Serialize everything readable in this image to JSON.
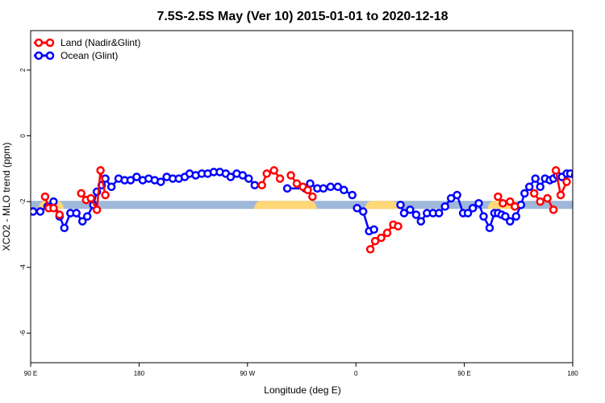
{
  "chart_data": {
    "type": "line",
    "title": "7.5S-2.5S May (Ver 10)   2015-01-01 to 2020-12-18",
    "xlabel": "Longitude (deg E)",
    "ylabel": "XCO2 - MLO trend (ppm)",
    "x_ticks": [
      {
        "value": 90,
        "label": "90 E"
      },
      {
        "value": 180,
        "label": "180"
      },
      {
        "value": 270,
        "label": "90 W"
      },
      {
        "value": 360,
        "label": "0"
      },
      {
        "value": 450,
        "label": "90 E"
      },
      {
        "value": 540,
        "label": "180"
      }
    ],
    "y_ticks": [
      2,
      0,
      -2,
      -4,
      -6
    ],
    "xlim": [
      90,
      540
    ],
    "ylim": [
      -6.9,
      3.2
    ],
    "grid": false,
    "legend_position": "top-left",
    "band": {
      "y": -2.1,
      "color": "#9fb8d9",
      "land_color": "#ffd878",
      "land_segments": [
        [
          99,
          115
        ],
        [
          278,
          325
        ],
        [
          370,
          393
        ],
        [
          472,
          493
        ]
      ]
    },
    "series": [
      {
        "name": "Land (Nadir&Glint)",
        "color": "#ff0000",
        "segments": [
          {
            "x": [
              102,
              105,
              109,
              114
            ],
            "y": [
              -1.85,
              -2.2,
              -2.2,
              -2.4
            ]
          },
          {
            "x": [
              132,
              136,
              140,
              145,
              148,
              152
            ],
            "y": [
              -1.75,
              -1.95,
              -1.9,
              -2.25,
              -1.05,
              -1.8
            ]
          },
          {
            "x": [
              282,
              286,
              292,
              297
            ],
            "y": [
              -1.5,
              -1.15,
              -1.05,
              -1.3
            ]
          },
          {
            "x": [
              306,
              311,
              316,
              320,
              324
            ],
            "y": [
              -1.2,
              -1.45,
              -1.55,
              -1.65,
              -1.85
            ]
          },
          {
            "x": [
              372,
              376,
              381,
              386,
              391,
              395
            ],
            "y": [
              -3.45,
              -3.2,
              -3.1,
              -2.95,
              -2.7,
              -2.75
            ]
          },
          {
            "x": [
              478,
              482,
              488,
              492
            ],
            "y": [
              -1.85,
              -2.05,
              -2.0,
              -2.15
            ]
          },
          {
            "x": [
              508,
              513,
              519,
              524
            ],
            "y": [
              -1.75,
              -2.0,
              -1.9,
              -2.25
            ]
          },
          {
            "x": [
              526,
              530,
              535
            ],
            "y": [
              -1.05,
              -1.8,
              -1.4
            ]
          }
        ]
      },
      {
        "name": "Ocean (Glint)",
        "color": "#0000ff",
        "segments": [
          {
            "x": [
              92,
              98,
              104,
              109,
              114,
              118,
              123,
              128,
              133,
              137,
              142,
              145,
              149,
              152,
              157,
              163,
              168,
              173,
              178,
              183,
              188,
              193,
              198,
              203,
              208,
              213,
              218,
              222,
              227,
              232,
              237,
              242,
              247,
              252,
              256,
              261,
              266,
              271,
              276
            ],
            "y": [
              -2.3,
              -2.3,
              -2.15,
              -2.0,
              -2.45,
              -2.8,
              -2.35,
              -2.35,
              -2.6,
              -2.45,
              -2.1,
              -1.7,
              -1.5,
              -1.3,
              -1.55,
              -1.3,
              -1.35,
              -1.35,
              -1.25,
              -1.35,
              -1.3,
              -1.35,
              -1.4,
              -1.25,
              -1.3,
              -1.3,
              -1.25,
              -1.15,
              -1.2,
              -1.15,
              -1.15,
              -1.1,
              -1.1,
              -1.15,
              -1.25,
              -1.15,
              -1.2,
              -1.3,
              -1.5
            ]
          },
          {
            "x": [
              303,
              318,
              322,
              328,
              333,
              339,
              345,
              350,
              357
            ],
            "y": [
              -1.6,
              -1.6,
              -1.45,
              -1.6,
              -1.6,
              -1.55,
              -1.55,
              -1.65,
              -1.8
            ]
          },
          {
            "x": [
              361,
              366,
              371,
              375
            ],
            "y": [
              -2.2,
              -2.3,
              -2.9,
              -2.85
            ]
          },
          {
            "x": [
              397,
              400,
              405,
              410,
              414,
              419,
              424,
              429,
              434,
              439,
              444,
              449,
              453,
              457,
              462,
              466,
              471,
              475,
              478,
              481,
              484,
              488,
              493,
              497,
              500,
              504,
              509,
              513,
              517,
              521,
              524,
              527,
              531,
              535,
              538,
              542,
              546
            ],
            "y": [
              -2.1,
              -2.35,
              -2.25,
              -2.4,
              -2.6,
              -2.35,
              -2.35,
              -2.35,
              -2.15,
              -1.9,
              -1.8,
              -2.35,
              -2.35,
              -2.2,
              -2.05,
              -2.45,
              -2.8,
              -2.35,
              -2.35,
              -2.4,
              -2.45,
              -2.6,
              -2.45,
              -2.1,
              -1.75,
              -1.55,
              -1.3,
              -1.55,
              -1.3,
              -1.35,
              -1.3,
              -1.2,
              -1.25,
              -1.15,
              -1.15,
              -1.2,
              -1.1
            ]
          }
        ]
      }
    ]
  }
}
